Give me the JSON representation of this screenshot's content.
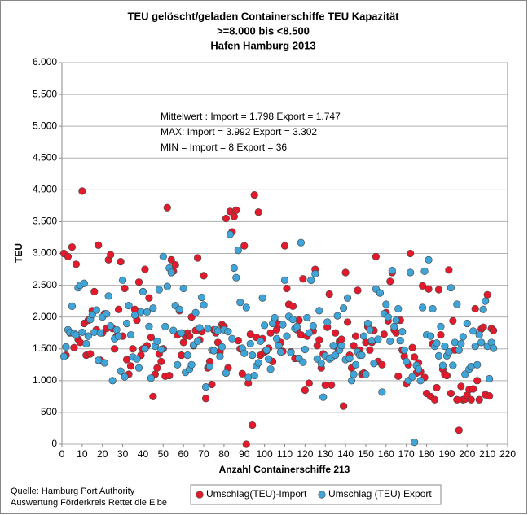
{
  "chart_data": {
    "type": "scatter",
    "title": [
      "TEU gelöscht/geladen Containerschiffe TEU Kapazität",
      ">=8.000 bis <8.500",
      "Hafen Hamburg 2013"
    ],
    "ylabel": "TEU",
    "xlabel": "Anzahl Containerschiffe 213",
    "annotations": [
      "Mittelwert : Import =  1.798  Export = 1.747",
      "MAX: Import = 3.992 Export = 3.302",
      "MIN = Import = 8 Export = 36"
    ],
    "source": [
      "Quelle: Hamburg Port Authority",
      "Auswertung Förderkreis Rettet die Elbe"
    ],
    "xlim": [
      0,
      220
    ],
    "xticks": [
      0,
      10,
      20,
      30,
      40,
      50,
      60,
      70,
      80,
      90,
      100,
      110,
      120,
      130,
      140,
      150,
      160,
      170,
      180,
      190,
      200,
      210,
      220
    ],
    "ylim": [
      0,
      6000
    ],
    "yticks": [
      0,
      500,
      {
        "value": 1000,
        "label": "1.000"
      },
      {
        "value": 1500,
        "label": "1.500"
      },
      {
        "value": 2000,
        "label": "2.000"
      },
      {
        "value": 2500,
        "label": "2.500"
      },
      {
        "value": 3000,
        "label": "3.000"
      },
      {
        "value": 3500,
        "label": "3.500"
      },
      {
        "value": 4000,
        "label": "4.000"
      },
      {
        "value": 4500,
        "label": "4.500"
      },
      {
        "value": 5000,
        "label": "5.000"
      },
      {
        "value": 5500,
        "label": "5.500"
      },
      {
        "value": 6000,
        "label": "6.000"
      }
    ],
    "grid": true,
    "x": [
      1,
      2,
      3,
      4,
      5,
      6,
      7,
      8,
      9,
      10,
      11,
      12,
      13,
      14,
      15,
      16,
      17,
      18,
      19,
      20,
      21,
      22,
      23,
      24,
      25,
      26,
      27,
      28,
      29,
      30,
      31,
      32,
      33,
      34,
      35,
      36,
      37,
      38,
      39,
      40,
      41,
      42,
      43,
      44,
      45,
      46,
      47,
      48,
      49,
      50,
      51,
      52,
      53,
      54,
      55,
      56,
      57,
      58,
      59,
      60,
      61,
      62,
      63,
      64,
      65,
      66,
      67,
      68,
      69,
      70,
      71,
      72,
      73,
      74,
      75,
      76,
      77,
      78,
      79,
      80,
      81,
      82,
      83,
      84,
      85,
      86,
      87,
      88,
      89,
      90,
      91,
      92,
      93,
      94,
      95,
      96,
      97,
      98,
      99,
      100,
      101,
      102,
      103,
      104,
      105,
      106,
      107,
      108,
      109,
      110,
      111,
      112,
      113,
      114,
      115,
      116,
      117,
      118,
      119,
      120,
      121,
      122,
      123,
      124,
      125,
      126,
      127,
      128,
      129,
      130,
      131,
      132,
      133,
      134,
      135,
      136,
      137,
      138,
      139,
      140,
      141,
      142,
      143,
      144,
      145,
      146,
      147,
      148,
      149,
      150,
      151,
      152,
      153,
      154,
      155,
      156,
      157,
      158,
      159,
      160,
      161,
      162,
      163,
      164,
      165,
      166,
      167,
      168,
      169,
      170,
      171,
      172,
      173,
      174,
      175,
      176,
      177,
      178,
      179,
      180,
      181,
      182,
      183,
      184,
      185,
      186,
      187,
      188,
      189,
      190,
      191,
      192,
      193,
      194,
      195,
      196,
      197,
      198,
      199,
      200,
      201,
      202,
      203,
      204,
      205,
      206,
      207,
      208,
      209,
      210,
      211,
      212,
      213
    ],
    "series": [
      {
        "name": "Umschlag(TEU)-Import",
        "color": "#e41a2c",
        "values": [
          3000,
          1400,
          2950,
          1750,
          3100,
          1520,
          2830,
          1650,
          1600,
          3980,
          1900,
          1400,
          1950,
          1420,
          2100,
          2400,
          1800,
          3130,
          1320,
          1750,
          2050,
          1820,
          2900,
          2980,
          1820,
          1500,
          1700,
          2120,
          2870,
          1700,
          2450,
          1330,
          1100,
          1230,
          1500,
          2120,
          1950,
          2550,
          1400,
          1500,
          2750,
          1550,
          2300,
          1680,
          750,
          1100,
          1200,
          1420,
          1300,
          1500,
          1070,
          3720,
          1080,
          2900,
          2720,
          2820,
          1720,
          2100,
          1400,
          1600,
          1700,
          1750,
          1700,
          2000,
          1550,
          1790,
          2930,
          1640,
          1770,
          2650,
          720,
          1200,
          1300,
          940,
          1800,
          1750,
          1600,
          1450,
          1880,
          1850,
          3550,
          1200,
          3660,
          3340,
          3580,
          3680,
          1630,
          1500,
          1110,
          3120,
          0,
          960,
          1730,
          300,
          3920,
          1680,
          3650,
          1400,
          1660,
          1450,
          1470,
          1510,
          1750,
          1300,
          1950,
          1800,
          1880,
          1600,
          1460,
          3120,
          2450,
          2200,
          1450,
          2170,
          1350,
          1800,
          1950,
          1720,
          2600,
          850,
          1700,
          960,
          2580,
          1780,
          2750,
          1550,
          1640,
          1200,
          1420,
          930,
          1840,
          2360,
          930,
          1550,
          1750,
          1520,
          1620,
          1650,
          600,
          2700,
          1920,
          1400,
          1200,
          1550,
          1700,
          2420,
          1480,
          1100,
          1120,
          1600,
          1850,
          1480,
          1600,
          1790,
          2950,
          1300,
          2380,
          1250,
          1730,
          2070,
          1940,
          2560,
          2700,
          1800,
          1750,
          1070,
          1950,
          1480,
          1380,
          950,
          1250,
          3000,
          1520,
          1370,
          1120,
          1280,
          1140,
          2490,
          1050,
          800,
          2440,
          750,
          1580,
          700,
          890,
          2430,
          1720,
          1180,
          1100,
          1080,
          2740,
          800,
          1940,
          1480,
          700,
          220,
          910,
          700,
          710,
          770,
          860,
          700,
          870,
          2130,
          1000,
          700,
          1810,
          1840,
          780,
          2350,
          760,
          1820,
          1790
        ]
      },
      {
        "name": "Umschlag (TEU) Export",
        "color": "#3fa4d8",
        "values": [
          1380,
          1530,
          1800,
          1760,
          2170,
          1740,
          1720,
          2460,
          2500,
          1760,
          2530,
          1580,
          1700,
          1960,
          2040,
          1760,
          2110,
          1320,
          1750,
          2000,
          1280,
          2050,
          2330,
          1860,
          1000,
          1660,
          1800,
          1700,
          1150,
          2580,
          1060,
          1900,
          2180,
          1720,
          1370,
          2030,
          1340,
          1200,
          2080,
          2400,
          1500,
          2080,
          1850,
          1040,
          2140,
          1540,
          1620,
          2430,
          1490,
          2950,
          1850,
          2480,
          2770,
          2700,
          1790,
          2180,
          1250,
          2120,
          1750,
          2450,
          1130,
          1400,
          1180,
          1250,
          1560,
          2070,
          1620,
          1830,
          2310,
          2190,
          900,
          1820,
          1220,
          1480,
          1470,
          1800,
          1780,
          1380,
          1530,
          1800,
          1120,
          1770,
          3300,
          1660,
          2770,
          2620,
          3050,
          2230,
          1510,
          1430,
          2150,
          1050,
          1580,
          1400,
          1080,
          1230,
          1280,
          1620,
          2300,
          1870,
          1480,
          1340,
          1180,
          1900,
          1990,
          1660,
          1550,
          1450,
          1880,
          2580,
          1700,
          2010,
          1440,
          1960,
          1820,
          1850,
          1350,
          3170,
          1290,
          1490,
          1990,
          1750,
          2580,
          1860,
          2680,
          1340,
          2100,
          1270,
          740,
          1390,
          1920,
          1340,
          1360,
          1550,
          1400,
          2020,
          1480,
          1550,
          2140,
          1330,
          2300,
          1350,
          1000,
          1100,
          1250,
          1450,
          1400,
          1400,
          1700,
          1100,
          1900,
          1800,
          1630,
          1270,
          2440,
          1650,
          2380,
          820,
          2050,
          2200,
          2000,
          1620,
          2730,
          1850,
          1950,
          2130,
          1630,
          1770,
          1480,
          1300,
          1000,
          2700,
          1060,
          30,
          1240,
          1180,
          1000,
          2150,
          2720,
          1720,
          2900,
          1700,
          2130,
          1540,
          1590,
          1390,
          1850,
          1240,
          1540,
          1390,
          1450,
          2460,
          1240,
          1600,
          2200,
          1480,
          1580,
          1690,
          1100,
          1900,
          1180,
          1220,
          1780,
          1540,
          1250,
          1720,
          1600,
          2120,
          2250,
          1540,
          1030,
          1600,
          1510
        ]
      }
    ]
  }
}
